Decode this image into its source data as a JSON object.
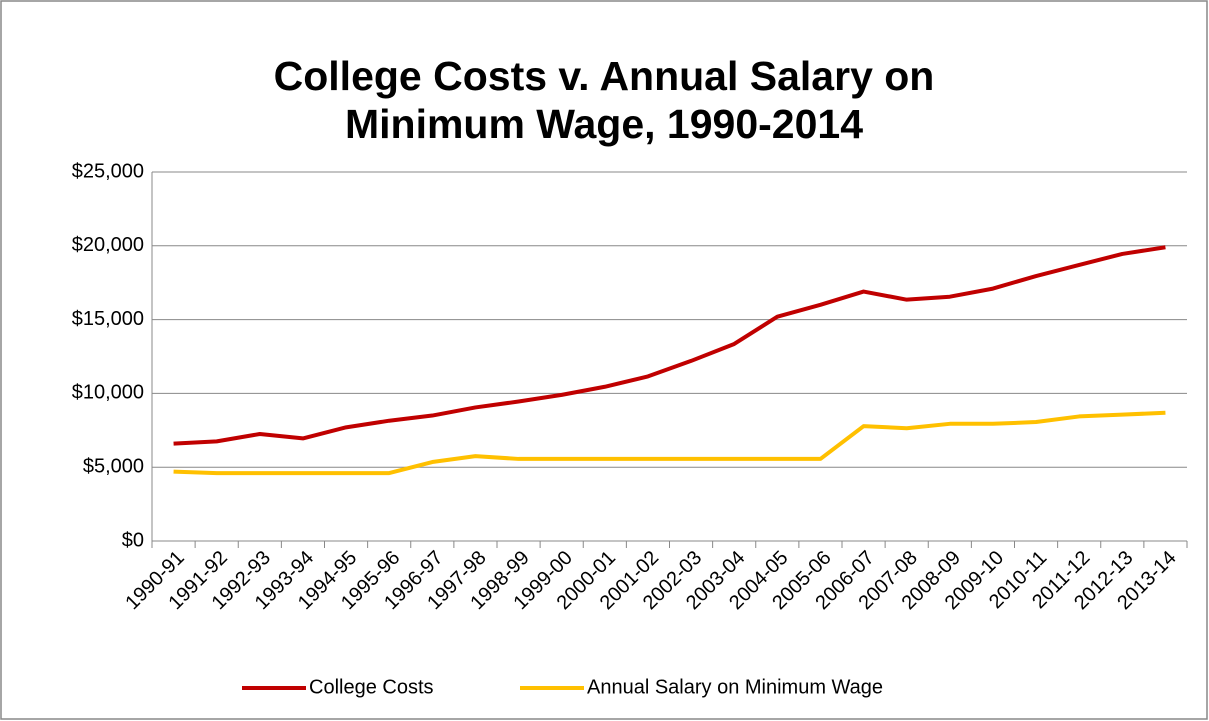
{
  "chart_data": {
    "type": "line",
    "title": "College Costs v. Annual Salary on Minimum Wage, 1990-2014",
    "categories": [
      "1990-91",
      "1991-92",
      "1992-93",
      "1993-94",
      "1994-95",
      "1995-96",
      "1996-97",
      "1997-98",
      "1998-99",
      "1999-00",
      "2000-01",
      "2001-02",
      "2002-03",
      "2003-04",
      "2004-05",
      "2005-06",
      "2006-07",
      "2007-08",
      "2008-09",
      "2009-10",
      "2010-11",
      "2011-12",
      "2012-13",
      "2013-14"
    ],
    "series": [
      {
        "name": "College Costs",
        "color": "#c00000",
        "values": [
          6600,
          6750,
          7250,
          6950,
          7700,
          8150,
          8500,
          9050,
          9450,
          9900,
          10450,
          11150,
          12200,
          13350,
          15200,
          16000,
          16900,
          16350,
          16550,
          17100,
          17950,
          18700,
          19450,
          19900
        ]
      },
      {
        "name": "Annual Salary on Minimum Wage",
        "color": "#ffc000",
        "values": [
          4700,
          4600,
          4600,
          4600,
          4600,
          4600,
          5350,
          5750,
          5560,
          5560,
          5560,
          5560,
          5560,
          5560,
          5560,
          5560,
          7780,
          7640,
          7940,
          7940,
          8060,
          8440,
          8560,
          8690
        ]
      }
    ],
    "ylim": [
      0,
      25000
    ],
    "yticks": [
      {
        "value": 0,
        "label": "$0"
      },
      {
        "value": 5000,
        "label": "$5,000"
      },
      {
        "value": 10000,
        "label": "$10,000"
      },
      {
        "value": 15000,
        "label": "$15,000"
      },
      {
        "value": 20000,
        "label": "$20,000"
      },
      {
        "value": 25000,
        "label": "$25,000"
      }
    ],
    "grid": true,
    "legend": "bottom"
  }
}
